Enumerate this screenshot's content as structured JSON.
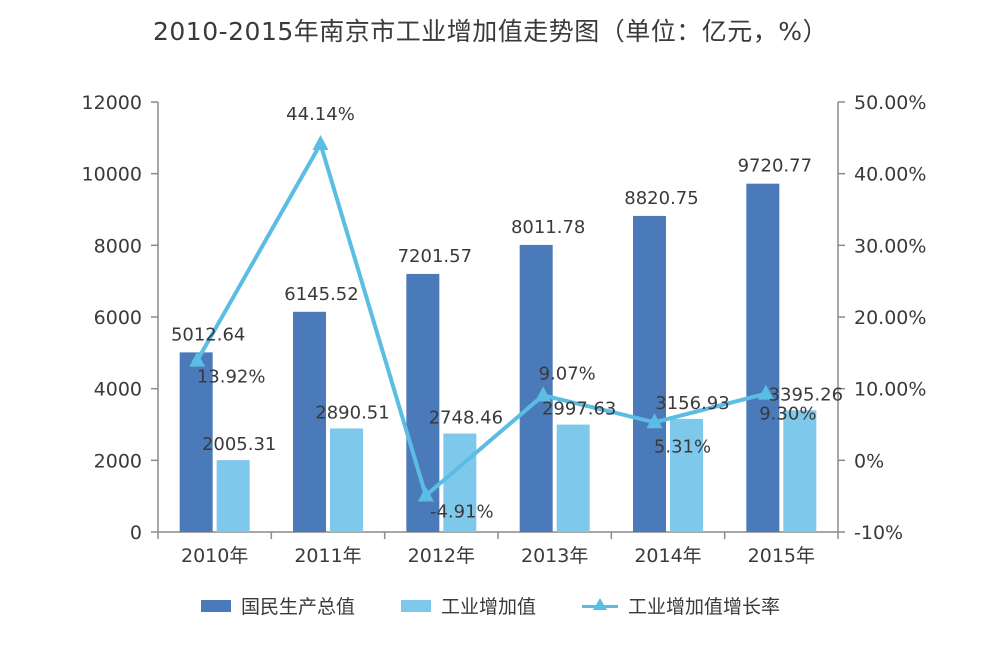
{
  "title": "2010-2015年南京市工业增加值走势图（单位：亿元，%）",
  "chart_data": {
    "type": "bar",
    "title": "2010-2015年南京市工业增加值走势图（单位：亿元，%）",
    "categories": [
      "2010年",
      "2011年",
      "2012年",
      "2013年",
      "2014年",
      "2015年"
    ],
    "series": [
      {
        "name": "国民生产总值",
        "type": "bar",
        "axis": "left",
        "color": "#4a7ab9",
        "values": [
          5012.64,
          6145.52,
          7201.57,
          8011.78,
          8820.75,
          9720.77
        ],
        "labels": [
          "5012.64",
          "6145.52",
          "7201.57",
          "8011.78",
          "8820.75",
          "9720.77"
        ]
      },
      {
        "name": "工业增加值",
        "type": "bar",
        "axis": "left",
        "color": "#7ec8ec",
        "values": [
          2005.31,
          2890.51,
          2748.46,
          2997.63,
          3156.93,
          3395.26
        ],
        "labels": [
          "2005.31",
          "2890.51",
          "2748.46",
          "2997.63",
          "3156.93",
          "3395.26"
        ]
      },
      {
        "name": "工业增加值增长率",
        "type": "line",
        "axis": "right",
        "color": "#5bbde3",
        "marker": "triangle",
        "values": [
          13.92,
          44.14,
          -4.91,
          9.07,
          5.31,
          9.3
        ],
        "labels": [
          "13.92%",
          "44.14%",
          "-4.91%",
          "9.07%",
          "5.31%",
          "9.30%"
        ]
      }
    ],
    "y_left": {
      "ylim": [
        0,
        12000
      ],
      "ticks": [
        0,
        2000,
        4000,
        6000,
        8000,
        10000,
        12000
      ],
      "tick_labels": [
        "0",
        "2000",
        "4000",
        "6000",
        "8000",
        "10000",
        "12000"
      ]
    },
    "y_right": {
      "ylim": [
        -10,
        50
      ],
      "ticks": [
        -10,
        0,
        10,
        20,
        30,
        40,
        50
      ],
      "tick_labels": [
        "-10%",
        "0%",
        "10.00%",
        "20.00%",
        "30.00%",
        "40.00%",
        "50.00%"
      ]
    },
    "grid": false,
    "legend_position": "bottom"
  }
}
